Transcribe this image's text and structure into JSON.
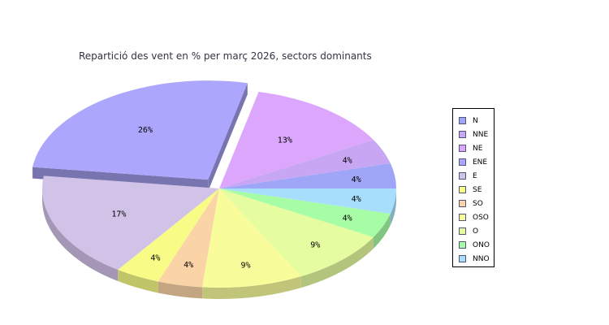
{
  "chart_data": {
    "type": "pie",
    "title": "Repartició des vent en % per març 2026, sectors dominants",
    "categories": [
      "N",
      "NNE",
      "NE",
      "ENE",
      "E",
      "SE",
      "SO",
      "OSO",
      "O",
      "ONO",
      "NNO"
    ],
    "values": [
      4,
      4,
      13,
      26,
      17,
      4,
      4,
      9,
      9,
      4,
      4
    ],
    "labels": [
      "4%",
      "4%",
      "13%",
      "26%",
      "17%",
      "4%",
      "4%",
      "9%",
      "9%",
      "4%",
      "4%"
    ],
    "exploded": [
      "ENE"
    ],
    "style": "3d",
    "legend_position": "right",
    "colors": [
      "#9fa6f8",
      "#c7a6f4",
      "#dba6fb",
      "#aca6fc",
      "#d1c2e8",
      "#f8fc87",
      "#fad4a7",
      "#f8fc9b",
      "#e5fca0",
      "#a6fda6",
      "#a6defc"
    ]
  }
}
